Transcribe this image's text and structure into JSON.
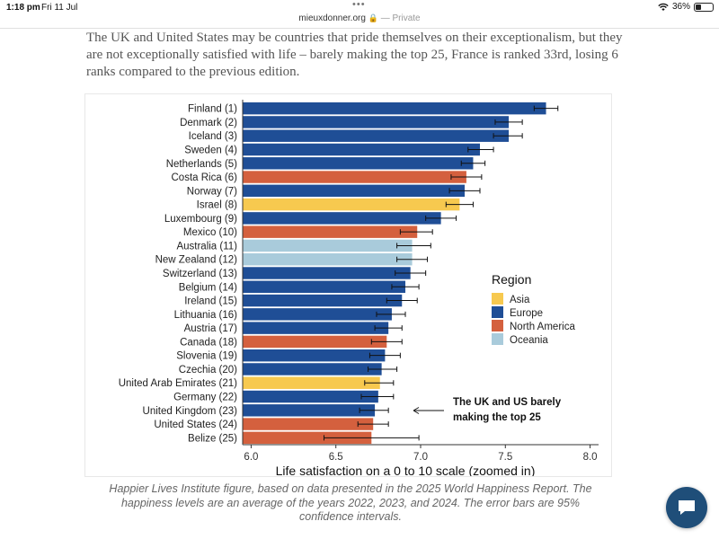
{
  "status_bar": {
    "time": "1:18 pm",
    "date": "Fri 11 Jul",
    "battery": "36%"
  },
  "browser": {
    "url": "mieuxdonner.org",
    "private_label": "— Private"
  },
  "article": {
    "intro": "The UK and United States may be countries that pride themselves on their exceptionalism, but they are not exceptionally satisfied with life – barely making the top 25, France is ranked 33rd, losing 6 ranks compared to the previous edition.",
    "caption": "Happier Lives Institute figure, based on data presented in the 2025 World Happiness Report. The happiness levels are an average of the years 2022, 2023, and 2024. The error bars are 95% confidence intervals."
  },
  "colors": {
    "Asia": "#f7c94f",
    "Europe": "#1f4e96",
    "North America": "#d4603e",
    "Oceania": "#a9cbdb"
  },
  "chart_data": {
    "type": "bar",
    "orientation": "horizontal",
    "title": "",
    "xlabel": "Life satisfaction on a 0 to 10 scale (zoomed in)",
    "ylabel": "",
    "xlim": [
      5.95,
      8.05
    ],
    "xticks": [
      "6.0",
      "6.5",
      "7.0",
      "7.5",
      "8.0"
    ],
    "legend": {
      "title": "Region",
      "position": "right",
      "entries": [
        "Asia",
        "Europe",
        "North America",
        "Oceania"
      ]
    },
    "annotation": {
      "line1": "The UK and US barely",
      "line2": "making the top 25"
    },
    "categories": [
      "Finland (1)",
      "Denmark (2)",
      "Iceland (3)",
      "Sweden (4)",
      "Netherlands (5)",
      "Costa Rica (6)",
      "Norway (7)",
      "Israel (8)",
      "Luxembourg (9)",
      "Mexico (10)",
      "Australia (11)",
      "New Zealand (12)",
      "Switzerland (13)",
      "Belgium (14)",
      "Ireland (15)",
      "Lithuania (16)",
      "Austria (17)",
      "Canada (18)",
      "Slovenia (19)",
      "Czechia (20)",
      "United Arab Emirates (21)",
      "Germany (22)",
      "United Kingdom (23)",
      "United States (24)",
      "Belize (25)"
    ],
    "values": [
      7.74,
      7.52,
      7.52,
      7.35,
      7.31,
      7.27,
      7.26,
      7.23,
      7.12,
      6.98,
      6.95,
      6.95,
      6.94,
      6.91,
      6.89,
      6.83,
      6.81,
      6.8,
      6.79,
      6.77,
      6.76,
      6.75,
      6.73,
      6.72,
      6.71
    ],
    "ci_low": [
      7.67,
      7.44,
      7.43,
      7.28,
      7.24,
      7.18,
      7.17,
      7.15,
      7.03,
      6.88,
      6.86,
      6.86,
      6.85,
      6.83,
      6.8,
      6.74,
      6.73,
      6.71,
      6.7,
      6.69,
      6.67,
      6.65,
      6.64,
      6.63,
      6.43
    ],
    "ci_high": [
      7.81,
      7.6,
      7.6,
      7.43,
      7.38,
      7.36,
      7.35,
      7.31,
      7.21,
      7.07,
      7.06,
      7.04,
      7.03,
      6.99,
      6.98,
      6.91,
      6.89,
      6.89,
      6.88,
      6.86,
      6.84,
      6.84,
      6.81,
      6.81,
      6.99
    ],
    "regions": [
      "Europe",
      "Europe",
      "Europe",
      "Europe",
      "Europe",
      "North America",
      "Europe",
      "Asia",
      "Europe",
      "North America",
      "Oceania",
      "Oceania",
      "Europe",
      "Europe",
      "Europe",
      "Europe",
      "Europe",
      "North America",
      "Europe",
      "Europe",
      "Asia",
      "Europe",
      "Europe",
      "North America",
      "North America"
    ]
  }
}
